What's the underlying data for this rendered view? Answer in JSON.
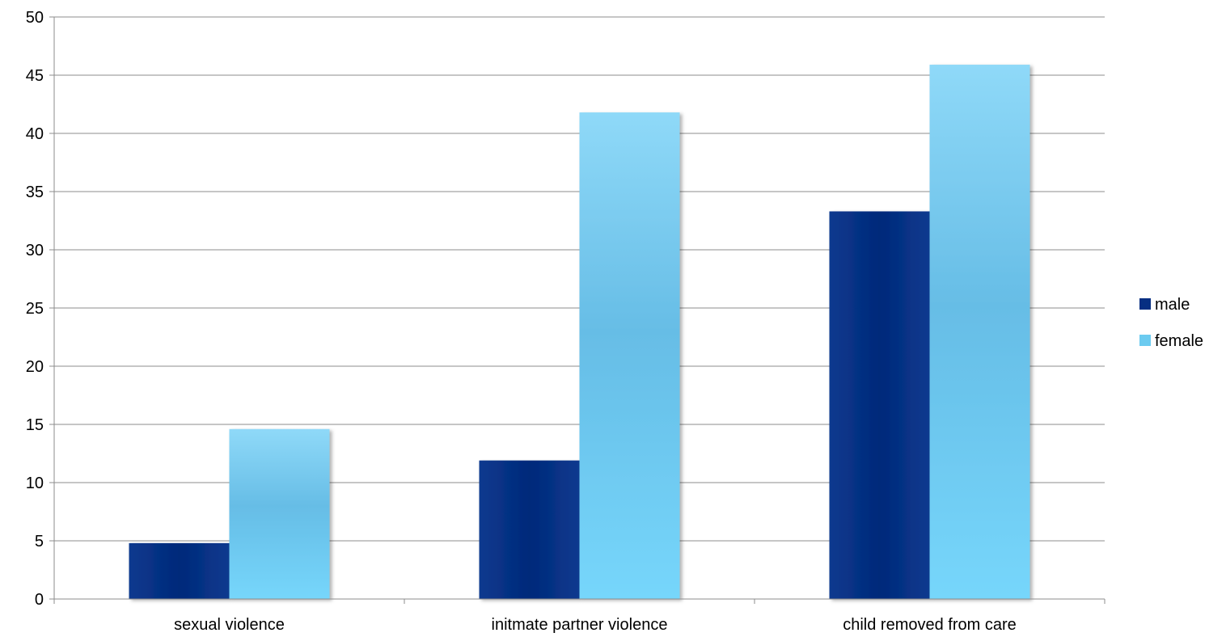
{
  "chart_data": {
    "type": "bar",
    "title": "",
    "xlabel": "",
    "ylabel": "",
    "categories": [
      "sexual violence",
      "initmate partner violence",
      "child removed from care"
    ],
    "series": [
      {
        "name": "male",
        "values": [
          4.8,
          11.9,
          33.3
        ],
        "color": "#062f82"
      },
      {
        "name": "female",
        "values": [
          14.6,
          41.8,
          45.9
        ],
        "color": "#6ccbf0"
      }
    ],
    "ylim": [
      0,
      50
    ],
    "yticks": [
      0,
      5,
      10,
      15,
      20,
      25,
      30,
      35,
      40,
      45,
      50
    ],
    "grid": true,
    "legend_position": "right"
  }
}
